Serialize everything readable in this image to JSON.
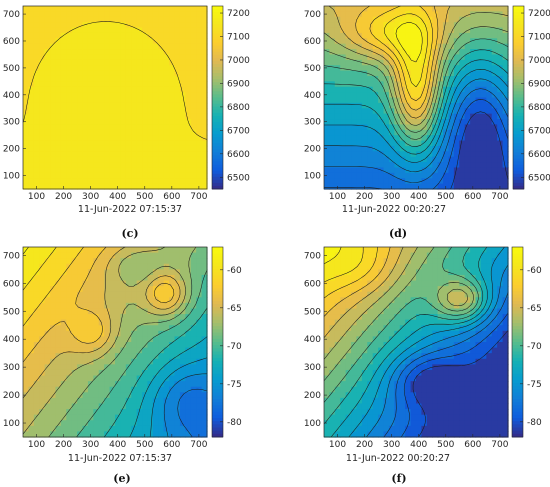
{
  "figure": {
    "panels": [
      {
        "id": "c",
        "caption": "(c)",
        "xlabel": "11-Jun-2022 07:15:37"
      },
      {
        "id": "d",
        "caption": "(d)",
        "xlabel": "11-Jun-2022 00:20:27"
      },
      {
        "id": "e",
        "caption": "(e)",
        "xlabel": "11-Jun-2022 07:15:37"
      },
      {
        "id": "f",
        "caption": "(f)",
        "xlabel": "11-Jun-2022 00:20:27"
      }
    ]
  },
  "chart_data": [
    {
      "type": "heatmap",
      "panel": "(c)",
      "xlabel": "11-Jun-2022 07:15:37",
      "x_ticks": [
        100,
        200,
        300,
        400,
        500,
        600,
        700
      ],
      "y_ticks": [
        100,
        200,
        300,
        400,
        500,
        600,
        700
      ],
      "xlim": [
        50,
        730
      ],
      "ylim": [
        50,
        730
      ],
      "colorbar_ticks": [
        7200,
        7100,
        7000,
        6900,
        6800,
        6700,
        6600,
        6500
      ],
      "colorbar_range": [
        6450,
        7230
      ],
      "colormap": "parula",
      "field_note_colors": {
        "dominant": "#f5e61e"
      }
    },
    {
      "type": "heatmap",
      "panel": "(d)",
      "xlabel": "11-Jun-2022 00:20:27",
      "x_ticks": [
        100,
        200,
        300,
        400,
        500,
        600,
        700
      ],
      "y_ticks": [
        100,
        200,
        300,
        400,
        500,
        600,
        700
      ],
      "xlim": [
        50,
        730
      ],
      "ylim": [
        50,
        730
      ],
      "colorbar_ticks": [
        7200,
        7100,
        7000,
        6900,
        6800,
        6700,
        6600,
        6500
      ],
      "colorbar_range": [
        6450,
        7230
      ],
      "colormap": "parula"
    },
    {
      "type": "heatmap",
      "panel": "(e)",
      "xlabel": "11-Jun-2022 07:15:37",
      "x_ticks": [
        100,
        200,
        300,
        400,
        500,
        600,
        700
      ],
      "y_ticks": [
        100,
        200,
        300,
        400,
        500,
        600,
        700
      ],
      "xlim": [
        50,
        730
      ],
      "ylim": [
        50,
        730
      ],
      "colorbar_ticks": [
        -60,
        -65,
        -70,
        -75,
        -80
      ],
      "colorbar_range": [
        -82,
        -57
      ],
      "colormap": "parula"
    },
    {
      "type": "heatmap",
      "panel": "(f)",
      "xlabel": "11-Jun-2022 00:20:27",
      "x_ticks": [
        100,
        200,
        300,
        400,
        500,
        600,
        700
      ],
      "y_ticks": [
        100,
        200,
        300,
        400,
        500,
        600,
        700
      ],
      "xlim": [
        50,
        730
      ],
      "ylim": [
        50,
        730
      ],
      "colorbar_ticks": [
        -60,
        -65,
        -70,
        -75,
        -80
      ],
      "colorbar_range": [
        -82,
        -57
      ],
      "colormap": "parula"
    }
  ]
}
